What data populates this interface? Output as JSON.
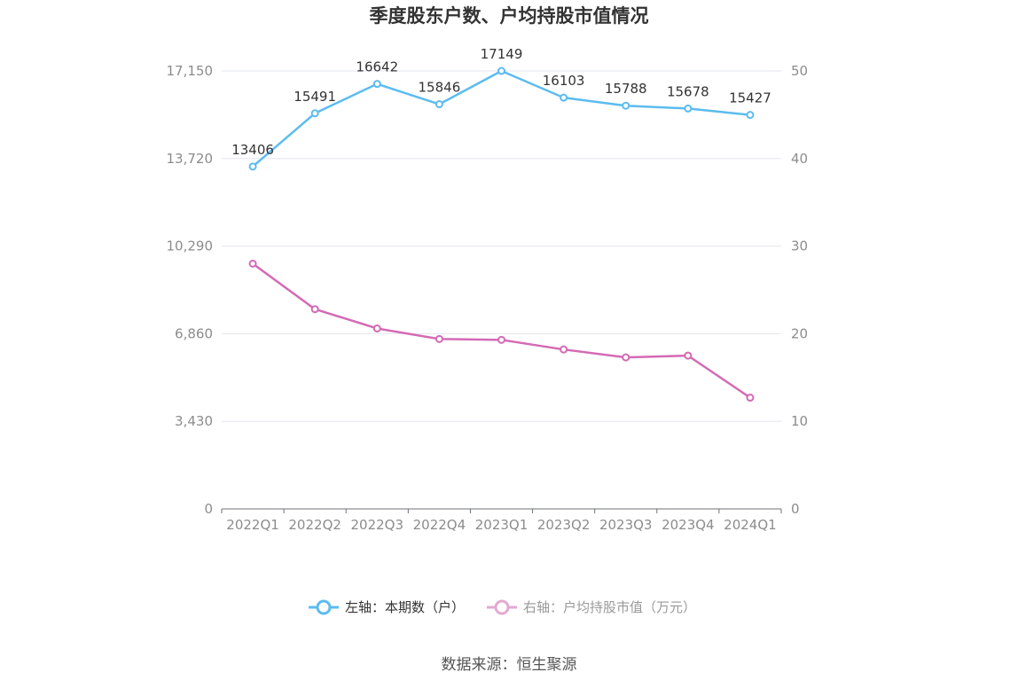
{
  "chart_data": {
    "type": "line",
    "title": "季度股东户数、户均持股市值情况",
    "categories": [
      "2022Q1",
      "2022Q2",
      "2022Q3",
      "2022Q4",
      "2023Q1",
      "2023Q2",
      "2023Q3",
      "2023Q4",
      "2024Q1"
    ],
    "left_axis": {
      "ylim": [
        0,
        17150
      ],
      "ticks": [
        "0",
        "3,430",
        "6,860",
        "10,290",
        "13,720",
        "17,150"
      ],
      "tick_values": [
        0,
        3430,
        6860,
        10290,
        13720,
        17150
      ]
    },
    "right_axis": {
      "ylim": [
        0,
        50
      ],
      "ticks": [
        "0",
        "10",
        "20",
        "30",
        "40",
        "50"
      ],
      "tick_values": [
        0,
        10,
        20,
        30,
        40,
        50
      ]
    },
    "series": [
      {
        "name": "左轴：本期数（户）",
        "axis": "left",
        "color": "#5bbcf0",
        "values": [
          13406,
          15491,
          16642,
          15846,
          17149,
          16103,
          15788,
          15678,
          15427
        ],
        "labels": [
          "13406",
          "15491",
          "16642",
          "15846",
          "17149",
          "16103",
          "15788",
          "15678",
          "15427"
        ]
      },
      {
        "name": "右轴：户均持股市值（万元）",
        "axis": "right",
        "color": "#d46ab4",
        "legend_color": "#e3a9d2",
        "values": [
          28.0,
          22.8,
          20.6,
          19.4,
          19.3,
          18.2,
          17.3,
          17.5,
          12.7
        ]
      }
    ],
    "grid": true,
    "legend_position": "bottom",
    "source": "数据来源：恒生聚源"
  }
}
